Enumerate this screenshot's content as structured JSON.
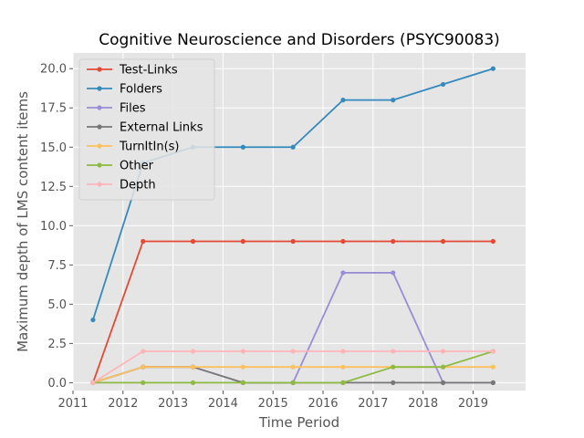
{
  "chart_data": {
    "type": "line",
    "title": "Cognitive Neuroscience and Disorders (PSYC90083)",
    "xlabel": "Time Period",
    "ylabel": "Maximum depth of LMS content items",
    "x": [
      2011.4,
      2012.4,
      2013.4,
      2014.4,
      2015.4,
      2016.4,
      2017.4,
      2018.4,
      2019.4
    ],
    "xlim": [
      2011,
      2020.05
    ],
    "ylim": [
      -0.5,
      21
    ],
    "xticks": [
      2011,
      2012,
      2013,
      2014,
      2015,
      2016,
      2017,
      2018,
      2019
    ],
    "xtick_labels": [
      "2011",
      "2012",
      "2013",
      "2014",
      "2015",
      "2016",
      "2017",
      "2018",
      "2019"
    ],
    "yticks": [
      0,
      2.5,
      5,
      7.5,
      10,
      12.5,
      15,
      17.5,
      20
    ],
    "ytick_labels": [
      "0.0",
      "2.5",
      "5.0",
      "7.5",
      "10.0",
      "12.5",
      "15.0",
      "17.5",
      "20.0"
    ],
    "grid": true,
    "legend_position": "upper-left",
    "background": "#e5e5e5",
    "series": [
      {
        "name": "Test-Links",
        "color": "#e24a33",
        "values": [
          0,
          9,
          9,
          9,
          9,
          9,
          9,
          9,
          9
        ]
      },
      {
        "name": "Folders",
        "color": "#348abd",
        "values": [
          4,
          14,
          15,
          15,
          15,
          18,
          18,
          19,
          20
        ]
      },
      {
        "name": "Files",
        "color": "#988ed5",
        "values": [
          0,
          1,
          1,
          0,
          0,
          7,
          7,
          0,
          0
        ]
      },
      {
        "name": "External Links",
        "color": "#777777",
        "values": [
          0,
          1,
          1,
          0,
          0,
          0,
          0,
          0,
          0
        ]
      },
      {
        "name": "TurnItIn(s)",
        "color": "#fbc15e",
        "values": [
          0,
          1,
          1,
          1,
          1,
          1,
          1,
          1,
          1
        ]
      },
      {
        "name": "Other",
        "color": "#8eba42",
        "values": [
          0,
          0,
          0,
          0,
          0,
          0,
          1,
          1,
          2
        ]
      },
      {
        "name": "Depth",
        "color": "#ffb5b8",
        "values": [
          0,
          2,
          2,
          2,
          2,
          2,
          2,
          2,
          2
        ]
      }
    ]
  }
}
